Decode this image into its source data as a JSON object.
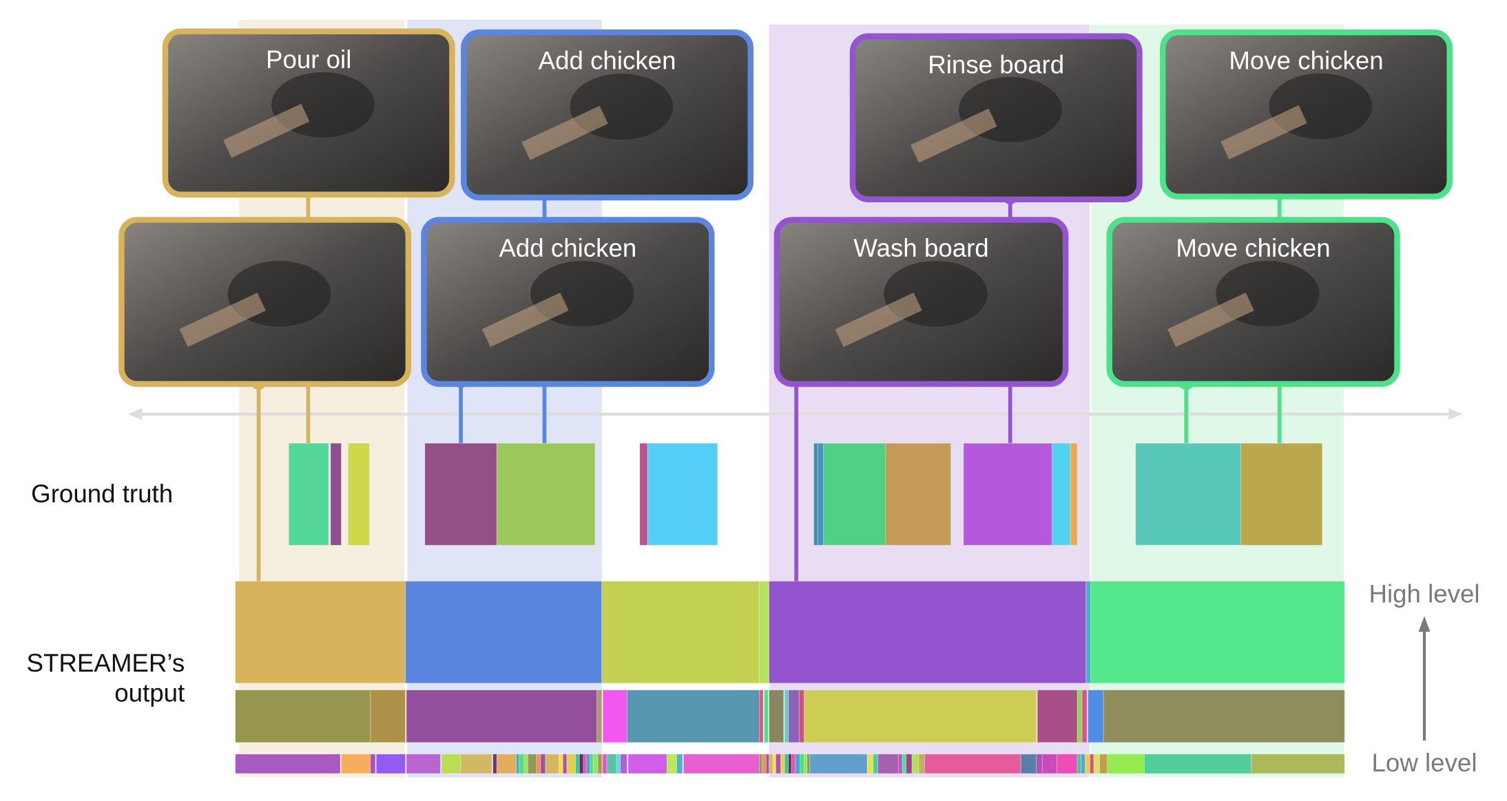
{
  "labels": {
    "ground_truth": "Ground truth",
    "output_line1": "STREAMER’s",
    "output_line2": "output",
    "high_level": "High level",
    "low_level": "Low level"
  },
  "events": [
    {
      "color": "#d8b35e",
      "band": "#f6efdf",
      "top_label": "Pour oil",
      "bottom_label": ""
    },
    {
      "color": "#5b86e0",
      "band": "#dfe5f6",
      "top_label": "Add chicken",
      "bottom_label": "Add chicken"
    },
    {
      "color": "#9453cf",
      "band": "#e9ddf4",
      "top_label": "Rinse board",
      "bottom_label": "Wash board"
    },
    {
      "color": "#4fe08a",
      "band": "#dff8e8",
      "top_label": "Move chicken",
      "bottom_label": "Move chicken"
    }
  ],
  "axis_color": "#dddddd",
  "level_arrow_color": "#7a7a7a"
}
